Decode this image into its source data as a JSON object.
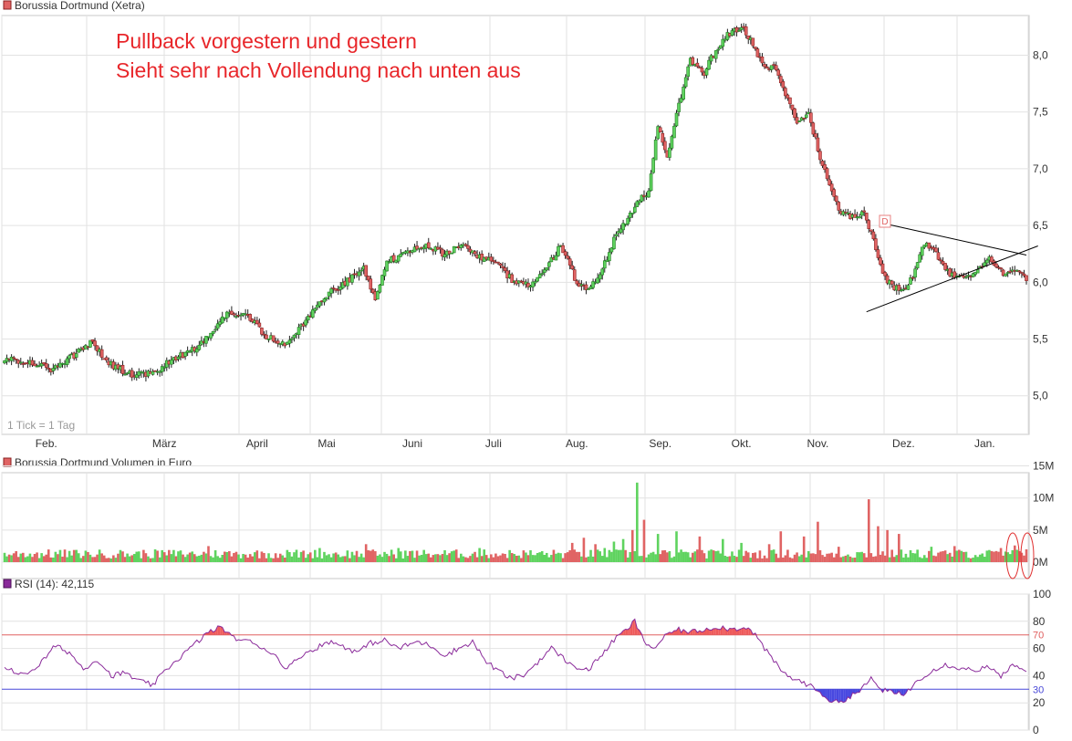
{
  "panels": {
    "price_title": "Borussia Dortmund (Xetra)",
    "volume_title": "Borussia Dortmund Volumen in Euro",
    "rsi_title": "RSI (14): 42,115",
    "tick_note": "1 Tick = 1 Tag",
    "annotation_line1": "Pullback vorgestern und gestern",
    "annotation_line2": "Sieht sehr nach Vollendung nach unten aus",
    "marker_letter": "D"
  },
  "colors": {
    "up": "#5fd35f",
    "down": "#e06464",
    "up_stroke": "#1f7a1f",
    "down_stroke": "#8a1f1f",
    "rsi_line": "#8a2a9a",
    "rsi_overbought_line": "#e06060",
    "rsi_oversold_line": "#4848d8",
    "rsi_overbought_fill": "#ee5a5a",
    "rsi_oversold_fill": "#4848e0",
    "annotation": "#e8262a",
    "grid": "#e2e2e2"
  },
  "chart_data": [
    {
      "type": "candlestick",
      "title": "Borussia Dortmund (Xetra)",
      "x_tick_labels": [
        "Feb.",
        "März",
        "April",
        "Mai",
        "Juni",
        "Juli",
        "Aug.",
        "Sep.",
        "Okt.",
        "Nov.",
        "Dez.",
        "Jan."
      ],
      "y_tick_labels": [
        "5,0",
        "5,5",
        "6,0",
        "6,5",
        "7,0",
        "7,5",
        "8,0"
      ],
      "y_ticks": [
        5.0,
        5.5,
        6.0,
        6.5,
        7.0,
        7.5,
        8.0
      ],
      "ylim": [
        4.66,
        8.35
      ],
      "grid": true,
      "close_anchors": [
        [
          0,
          5.33
        ],
        [
          10,
          5.3
        ],
        [
          20,
          5.23
        ],
        [
          30,
          5.36
        ],
        [
          37,
          5.47
        ],
        [
          47,
          5.26
        ],
        [
          56,
          5.18
        ],
        [
          65,
          5.2
        ],
        [
          71,
          5.3
        ],
        [
          82,
          5.42
        ],
        [
          91,
          5.6
        ],
        [
          97,
          5.75
        ],
        [
          106,
          5.68
        ],
        [
          113,
          5.52
        ],
        [
          122,
          5.45
        ],
        [
          130,
          5.66
        ],
        [
          138,
          5.88
        ],
        [
          146,
          5.98
        ],
        [
          155,
          6.12
        ],
        [
          160,
          5.82
        ],
        [
          165,
          6.18
        ],
        [
          174,
          6.28
        ],
        [
          182,
          6.32
        ],
        [
          190,
          6.25
        ],
        [
          198,
          6.32
        ],
        [
          206,
          6.22
        ],
        [
          213,
          6.15
        ],
        [
          220,
          6.0
        ],
        [
          227,
          5.98
        ],
        [
          233,
          6.1
        ],
        [
          240,
          6.32
        ],
        [
          247,
          6.0
        ],
        [
          252,
          5.95
        ],
        [
          257,
          6.05
        ],
        [
          263,
          6.38
        ],
        [
          269,
          6.55
        ],
        [
          274,
          6.72
        ],
        [
          278,
          6.8
        ],
        [
          282,
          7.4
        ],
        [
          286,
          7.1
        ],
        [
          291,
          7.55
        ],
        [
          296,
          7.95
        ],
        [
          302,
          7.85
        ],
        [
          307,
          8.05
        ],
        [
          312,
          8.18
        ],
        [
          318,
          8.25
        ],
        [
          323,
          8.1
        ],
        [
          328,
          7.88
        ],
        [
          333,
          7.9
        ],
        [
          338,
          7.6
        ],
        [
          342,
          7.4
        ],
        [
          347,
          7.48
        ],
        [
          352,
          7.1
        ],
        [
          357,
          6.8
        ],
        [
          361,
          6.6
        ],
        [
          366,
          6.58
        ],
        [
          371,
          6.6
        ],
        [
          375,
          6.4
        ],
        [
          379,
          6.05
        ],
        [
          384,
          5.95
        ],
        [
          388,
          5.92
        ],
        [
          392,
          6.05
        ],
        [
          397,
          6.35
        ],
        [
          402,
          6.25
        ],
        [
          408,
          6.08
        ],
        [
          414,
          6.05
        ],
        [
          420,
          6.1
        ],
        [
          425,
          6.22
        ],
        [
          431,
          6.08
        ],
        [
          437,
          6.1
        ],
        [
          441,
          6.02
        ]
      ],
      "triangle_lines": [
        {
          "from": [
            379,
            6.52
          ],
          "to": [
            441,
            6.24
          ]
        },
        {
          "from": [
            372,
            5.74
          ],
          "to": [
            446,
            6.32
          ]
        }
      ]
    },
    {
      "type": "bar",
      "title": "Borussia Dortmund Volumen in Euro",
      "y_tick_labels": [
        "0M",
        "5M",
        "10M",
        "15M"
      ],
      "y_ticks": [
        0,
        5,
        10,
        15
      ],
      "ylim": [
        0,
        15
      ],
      "unit": "Mio. Euro",
      "typical_volume": 1.6,
      "volume_peaks": [
        [
          88,
          2.5
        ],
        [
          136,
          2.2
        ],
        [
          156,
          2.8
        ],
        [
          170,
          2.2
        ],
        [
          205,
          2.2
        ],
        [
          245,
          3.0
        ],
        [
          250,
          3.8
        ],
        [
          255,
          2.8
        ],
        [
          259,
          2.2
        ],
        [
          263,
          3.2
        ],
        [
          267,
          3.6
        ],
        [
          271,
          5.0
        ],
        [
          273,
          12.4
        ],
        [
          276,
          6.6
        ],
        [
          282,
          4.4
        ],
        [
          290,
          4.8
        ],
        [
          300,
          4.0
        ],
        [
          310,
          3.6
        ],
        [
          318,
          3.0
        ],
        [
          330,
          2.8
        ],
        [
          335,
          4.8
        ],
        [
          345,
          4.0
        ],
        [
          351,
          6.3
        ],
        [
          360,
          2.4
        ],
        [
          373,
          9.8
        ],
        [
          377,
          5.6
        ],
        [
          381,
          5.0
        ],
        [
          386,
          4.4
        ],
        [
          400,
          2.4
        ],
        [
          410,
          2.5
        ],
        [
          430,
          2.2
        ],
        [
          436,
          2.6
        ],
        [
          441,
          2.0
        ]
      ],
      "highlighted_bars": [
        432,
        441
      ]
    },
    {
      "type": "line",
      "title": "RSI (14): 42,115",
      "series": [
        {
          "name": "RSI (14)",
          "current": 42.115
        }
      ],
      "y_tick_labels": [
        "0",
        "20",
        "40",
        "60",
        "80",
        "100"
      ],
      "y_ticks": [
        0,
        20,
        40,
        60,
        80,
        100
      ],
      "ylim": [
        0,
        100
      ],
      "overbought": 70,
      "oversold": 30,
      "overbought_label": "70",
      "oversold_label": "30",
      "rsi_anchors": [
        [
          0,
          47
        ],
        [
          8,
          40
        ],
        [
          15,
          48
        ],
        [
          22,
          62
        ],
        [
          28,
          57
        ],
        [
          34,
          45
        ],
        [
          40,
          52
        ],
        [
          46,
          40
        ],
        [
          52,
          42
        ],
        [
          58,
          36
        ],
        [
          64,
          33
        ],
        [
          70,
          45
        ],
        [
          76,
          54
        ],
        [
          82,
          63
        ],
        [
          88,
          72
        ],
        [
          94,
          76
        ],
        [
          98,
          68
        ],
        [
          104,
          66
        ],
        [
          110,
          62
        ],
        [
          116,
          56
        ],
        [
          122,
          45
        ],
        [
          128,
          55
        ],
        [
          134,
          60
        ],
        [
          140,
          65
        ],
        [
          146,
          62
        ],
        [
          152,
          57
        ],
        [
          158,
          64
        ],
        [
          164,
          66
        ],
        [
          170,
          60
        ],
        [
          178,
          65
        ],
        [
          184,
          62
        ],
        [
          190,
          55
        ],
        [
          196,
          60
        ],
        [
          202,
          65
        ],
        [
          208,
          50
        ],
        [
          212,
          45
        ],
        [
          218,
          38
        ],
        [
          224,
          40
        ],
        [
          230,
          50
        ],
        [
          236,
          60
        ],
        [
          240,
          55
        ],
        [
          244,
          48
        ],
        [
          248,
          46
        ],
        [
          252,
          44
        ],
        [
          258,
          56
        ],
        [
          264,
          68
        ],
        [
          268,
          73
        ],
        [
          272,
          80
        ],
        [
          276,
          65
        ],
        [
          280,
          60
        ],
        [
          286,
          70
        ],
        [
          290,
          74
        ],
        [
          296,
          72
        ],
        [
          302,
          74
        ],
        [
          308,
          76
        ],
        [
          314,
          74
        ],
        [
          320,
          76
        ],
        [
          324,
          70
        ],
        [
          330,
          55
        ],
        [
          336,
          42
        ],
        [
          340,
          38
        ],
        [
          346,
          34
        ],
        [
          352,
          28
        ],
        [
          356,
          22
        ],
        [
          360,
          20
        ],
        [
          366,
          26
        ],
        [
          370,
          30
        ],
        [
          374,
          38
        ],
        [
          378,
          30
        ],
        [
          382,
          28
        ],
        [
          388,
          26
        ],
        [
          394,
          36
        ],
        [
          400,
          44
        ],
        [
          406,
          48
        ],
        [
          412,
          46
        ],
        [
          418,
          44
        ],
        [
          424,
          46
        ],
        [
          430,
          40
        ],
        [
          436,
          48
        ],
        [
          441,
          42
        ]
      ]
    }
  ]
}
